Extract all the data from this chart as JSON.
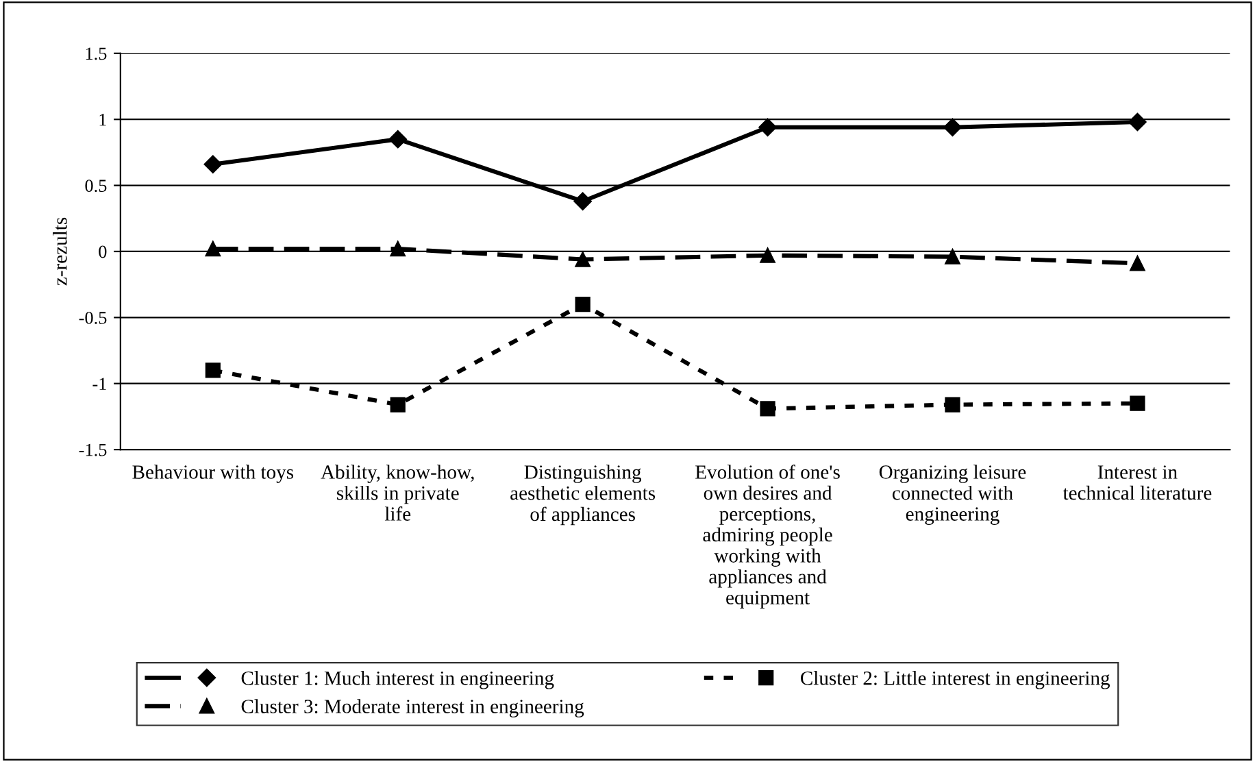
{
  "chart_data": {
    "type": "line",
    "ylabel": "z-rezults",
    "categories": [
      "Behaviour with toys",
      "Ability, know-how, skills in private life",
      "Distinguishing aesthetic elements of appliances",
      "Evolution of one's own desires and perceptions, admiring people working with appliances and equipment",
      "Organizing leisure connected with engineering",
      "Interest in technical literature"
    ],
    "series": [
      {
        "name": "Cluster 1: Much interest in engineering",
        "color": "#000000",
        "marker": "diamond",
        "line_style": "solid",
        "values": [
          0.66,
          0.85,
          0.38,
          0.94,
          0.94,
          0.98
        ]
      },
      {
        "name": "Cluster 2: Little interest in engineering",
        "color": "#000000",
        "marker": "square",
        "line_style": "dotted",
        "values": [
          -0.9,
          -1.16,
          -0.4,
          -1.19,
          -1.16,
          -1.15
        ]
      },
      {
        "name": "Cluster 3: Moderate interest in engineering",
        "color": "#000000",
        "marker": "triangle",
        "line_style": "dashed",
        "values": [
          0.02,
          0.02,
          -0.06,
          -0.03,
          -0.04,
          -0.09
        ]
      }
    ],
    "ylim": [
      -1.5,
      1.5
    ],
    "yticks": [
      -1.5,
      -1,
      -0.5,
      0,
      0.5,
      1,
      1.5
    ],
    "grid": "y",
    "legend": "bottom"
  }
}
